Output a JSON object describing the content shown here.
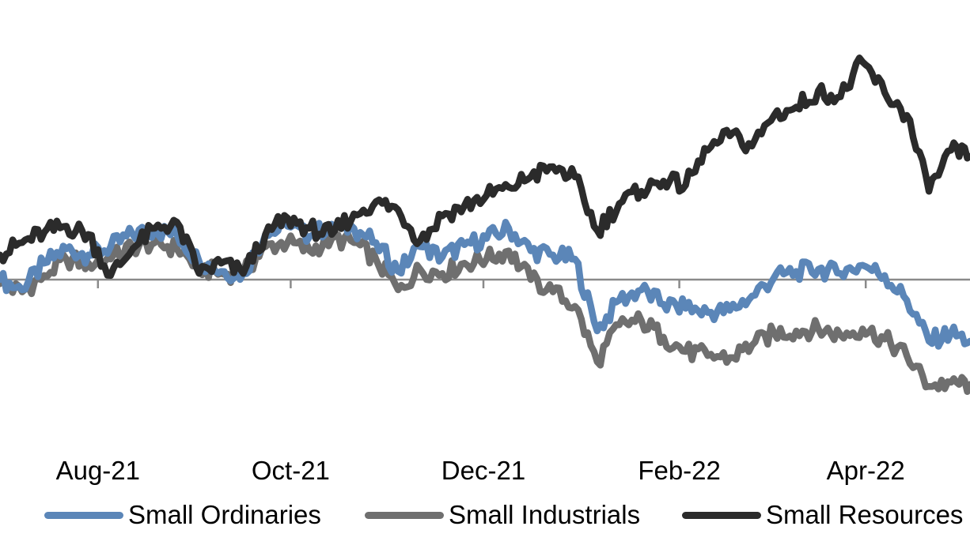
{
  "chart_data": {
    "type": "line",
    "title": "",
    "xlabel": "",
    "ylabel": "",
    "x_tick_labels": [
      "Aug-21",
      "Oct-21",
      "Dec-21",
      "Feb-22",
      "Apr-22"
    ],
    "x_range": [
      "2021-07-01",
      "2022-05-04"
    ],
    "baseline": 0,
    "grid": false,
    "legend_position": "bottom",
    "series": [
      {
        "name": "Small Ordinaries",
        "color": "#5b86b8",
        "points": [
          [
            "2021-07-01",
            0.0
          ],
          [
            "2021-07-08",
            -0.5
          ],
          [
            "2021-07-15",
            0.8
          ],
          [
            "2021-07-22",
            1.5
          ],
          [
            "2021-07-29",
            1.2
          ],
          [
            "2021-08-05",
            1.6
          ],
          [
            "2021-08-12",
            2.2
          ],
          [
            "2021-08-19",
            2.4
          ],
          [
            "2021-08-26",
            2.2
          ],
          [
            "2021-09-02",
            0.9
          ],
          [
            "2021-09-09",
            0.4
          ],
          [
            "2021-09-16",
            0.3
          ],
          [
            "2021-09-23",
            2.2
          ],
          [
            "2021-09-30",
            2.6
          ],
          [
            "2021-10-07",
            2.1
          ],
          [
            "2021-10-14",
            2.7
          ],
          [
            "2021-10-21",
            2.5
          ],
          [
            "2021-10-28",
            1.8
          ],
          [
            "2021-11-04",
            0.4
          ],
          [
            "2021-11-11",
            1.6
          ],
          [
            "2021-11-18",
            1.1
          ],
          [
            "2021-11-25",
            1.7
          ],
          [
            "2021-12-02",
            2.0
          ],
          [
            "2021-12-09",
            2.5
          ],
          [
            "2021-12-16",
            1.4
          ],
          [
            "2021-12-23",
            1.2
          ],
          [
            "2021-12-30",
            1.0
          ],
          [
            "2022-01-06",
            -2.5
          ],
          [
            "2022-01-13",
            -1.0
          ],
          [
            "2022-01-20",
            -0.5
          ],
          [
            "2022-01-27",
            -1.2
          ],
          [
            "2022-02-03",
            -1.4
          ],
          [
            "2022-02-10",
            -1.6
          ],
          [
            "2022-02-17",
            -1.5
          ],
          [
            "2022-02-24",
            -0.8
          ],
          [
            "2022-03-03",
            0.1
          ],
          [
            "2022-03-10",
            0.4
          ],
          [
            "2022-03-17",
            0.5
          ],
          [
            "2022-03-24",
            0.3
          ],
          [
            "2022-03-31",
            0.7
          ],
          [
            "2022-04-07",
            0.2
          ],
          [
            "2022-04-14",
            -1.0
          ],
          [
            "2022-04-21",
            -3.0
          ],
          [
            "2022-04-28",
            -2.6
          ],
          [
            "2022-05-04",
            -3.0
          ]
        ]
      },
      {
        "name": "Small Industrials",
        "color": "#6f6f6f",
        "points": [
          [
            "2021-07-01",
            -0.2
          ],
          [
            "2021-07-08",
            -0.6
          ],
          [
            "2021-07-15",
            0.2
          ],
          [
            "2021-07-22",
            1.0
          ],
          [
            "2021-07-29",
            0.8
          ],
          [
            "2021-08-05",
            1.0
          ],
          [
            "2021-08-12",
            1.6
          ],
          [
            "2021-08-19",
            1.8
          ],
          [
            "2021-08-26",
            1.5
          ],
          [
            "2021-09-02",
            0.6
          ],
          [
            "2021-09-09",
            0.3
          ],
          [
            "2021-09-16",
            0.3
          ],
          [
            "2021-09-23",
            1.6
          ],
          [
            "2021-09-30",
            1.8
          ],
          [
            "2021-10-07",
            1.4
          ],
          [
            "2021-10-14",
            2.0
          ],
          [
            "2021-10-21",
            1.8
          ],
          [
            "2021-10-28",
            1.0
          ],
          [
            "2021-11-04",
            -0.5
          ],
          [
            "2021-11-11",
            0.5
          ],
          [
            "2021-11-18",
            0.3
          ],
          [
            "2021-11-25",
            0.8
          ],
          [
            "2021-12-02",
            1.0
          ],
          [
            "2021-12-09",
            1.4
          ],
          [
            "2021-12-16",
            0.0
          ],
          [
            "2021-12-23",
            -0.6
          ],
          [
            "2021-12-30",
            -1.3
          ],
          [
            "2022-01-06",
            -4.0
          ],
          [
            "2022-01-13",
            -2.2
          ],
          [
            "2022-01-20",
            -2.0
          ],
          [
            "2022-01-27",
            -2.8
          ],
          [
            "2022-02-03",
            -3.5
          ],
          [
            "2022-02-10",
            -3.7
          ],
          [
            "2022-02-17",
            -3.8
          ],
          [
            "2022-02-24",
            -3.2
          ],
          [
            "2022-03-03",
            -2.6
          ],
          [
            "2022-03-10",
            -2.5
          ],
          [
            "2022-03-17",
            -2.4
          ],
          [
            "2022-03-24",
            -2.7
          ],
          [
            "2022-03-31",
            -2.4
          ],
          [
            "2022-04-07",
            -2.9
          ],
          [
            "2022-04-14",
            -3.7
          ],
          [
            "2022-04-21",
            -5.2
          ],
          [
            "2022-04-28",
            -5.0
          ],
          [
            "2022-05-04",
            -5.1
          ]
        ]
      },
      {
        "name": "Small Resources",
        "color": "#2b2b2b",
        "points": [
          [
            "2021-07-01",
            1.2
          ],
          [
            "2021-07-08",
            1.8
          ],
          [
            "2021-07-15",
            2.3
          ],
          [
            "2021-07-22",
            2.6
          ],
          [
            "2021-07-29",
            2.2
          ],
          [
            "2021-08-05",
            0.2
          ],
          [
            "2021-08-12",
            1.5
          ],
          [
            "2021-08-19",
            2.5
          ],
          [
            "2021-08-26",
            2.8
          ],
          [
            "2021-09-02",
            0.3
          ],
          [
            "2021-09-09",
            0.8
          ],
          [
            "2021-09-16",
            0.3
          ],
          [
            "2021-09-23",
            2.2
          ],
          [
            "2021-09-30",
            3.0
          ],
          [
            "2021-10-07",
            2.5
          ],
          [
            "2021-10-14",
            2.2
          ],
          [
            "2021-10-21",
            3.2
          ],
          [
            "2021-10-28",
            3.8
          ],
          [
            "2021-11-04",
            3.4
          ],
          [
            "2021-11-11",
            1.9
          ],
          [
            "2021-11-18",
            3.1
          ],
          [
            "2021-11-25",
            3.6
          ],
          [
            "2021-12-02",
            4.1
          ],
          [
            "2021-12-09",
            4.5
          ],
          [
            "2021-12-16",
            5.0
          ],
          [
            "2021-12-23",
            5.5
          ],
          [
            "2021-12-30",
            5.0
          ],
          [
            "2022-01-06",
            2.4
          ],
          [
            "2022-01-13",
            3.7
          ],
          [
            "2022-01-20",
            4.3
          ],
          [
            "2022-01-27",
            4.8
          ],
          [
            "2022-02-03",
            4.6
          ],
          [
            "2022-02-10",
            6.3
          ],
          [
            "2022-02-17",
            7.0
          ],
          [
            "2022-02-24",
            6.5
          ],
          [
            "2022-03-03",
            8.0
          ],
          [
            "2022-03-10",
            8.4
          ],
          [
            "2022-03-17",
            9.2
          ],
          [
            "2022-03-24",
            8.9
          ],
          [
            "2022-03-31",
            10.6
          ],
          [
            "2022-04-07",
            9.1
          ],
          [
            "2022-04-14",
            8.0
          ],
          [
            "2022-04-21",
            4.3
          ],
          [
            "2022-04-28",
            6.3
          ],
          [
            "2022-05-04",
            6.0
          ]
        ]
      }
    ]
  }
}
